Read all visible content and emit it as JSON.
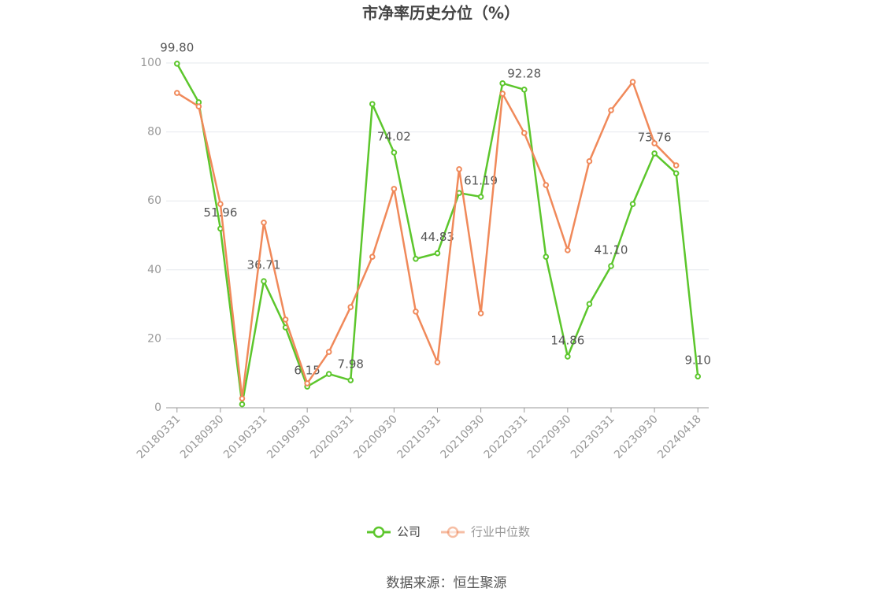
{
  "chart_data": {
    "type": "line",
    "title": "市净率历史分位（%）",
    "categories": [
      "20180331",
      null,
      "20180930",
      null,
      "20190331",
      null,
      "20190930",
      null,
      "20200331",
      null,
      "20200930",
      null,
      "20210331",
      null,
      "20210930",
      null,
      "20220331",
      null,
      "20220930",
      null,
      "20230331",
      null,
      "20230930",
      null,
      "20240418"
    ],
    "series": [
      {
        "name": "公司",
        "color": "#5cc62c",
        "values": [
          99.8,
          88.6,
          51.96,
          1.0,
          36.71,
          23.3,
          6.15,
          9.8,
          7.98,
          88.1,
          74.02,
          43.2,
          44.83,
          62.3,
          61.19,
          94.1,
          92.28,
          43.8,
          14.86,
          30.1,
          41.1,
          59.1,
          73.76,
          68.0,
          9.1
        ],
        "value_labels": [
          "99.80",
          null,
          "51.96",
          null,
          "36.71",
          null,
          "6.15",
          null,
          "7.98",
          null,
          "74.02",
          null,
          "44.83",
          null,
          "61.19",
          null,
          "92.28",
          null,
          "14.86",
          null,
          "41.10",
          null,
          "73.76",
          null,
          "9.10"
        ]
      },
      {
        "name": "行业中位数",
        "color": "#f0895a",
        "values": [
          91.3,
          87.4,
          59.1,
          2.7,
          53.7,
          25.6,
          7.1,
          16.2,
          29.2,
          43.8,
          63.5,
          27.9,
          13.2,
          69.2,
          27.4,
          91.1,
          79.7,
          64.6,
          45.7,
          71.5,
          86.3,
          94.5,
          76.7,
          70.3,
          null
        ]
      }
    ],
    "ylim": [
      0,
      100
    ],
    "yticks": [
      0,
      20,
      40,
      60,
      80,
      100
    ],
    "grid": true,
    "source": "数据来源：恒生聚源"
  }
}
